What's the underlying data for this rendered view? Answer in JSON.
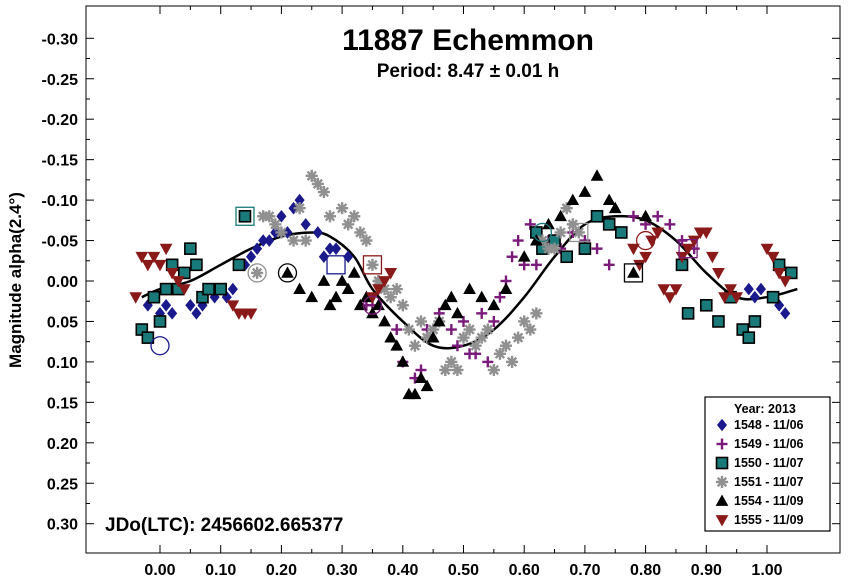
{
  "chart_data": {
    "type": "scatter",
    "title": "11887 Echemmon",
    "subtitle": "Period: 8.47 ± 0.01 h",
    "xlabel": "",
    "ylabel": "Magnitude alpha(2.4°)",
    "annotation": "JDo(LTC): 2456602.665377",
    "xlim": [
      -0.05,
      1.05
    ],
    "ylim": [
      0.35,
      -0.35
    ],
    "y_inverted": true,
    "x_ticks": [
      "0.00",
      "0.10",
      "0.20",
      "0.30",
      "0.40",
      "0.50",
      "0.60",
      "0.70",
      "0.80",
      "0.90",
      "1.00"
    ],
    "y_ticks": [
      "-0.30",
      "-0.25",
      "-0.20",
      "-0.15",
      "-0.10",
      "-0.05",
      "0.00",
      "0.05",
      "0.10",
      "0.15",
      "0.20",
      "0.25",
      "0.30"
    ],
    "legend": {
      "title": "Year: 2013",
      "placement": "bottom-right"
    },
    "series": [
      {
        "name": "1548 - 11/06",
        "marker": "diamond",
        "color": "#1a1a8c",
        "points": [
          [
            -0.02,
            0.03
          ],
          [
            0.0,
            0.04
          ],
          [
            0.01,
            0.03
          ],
          [
            0.02,
            0.04
          ],
          [
            0.05,
            0.03
          ],
          [
            0.06,
            0.04
          ],
          [
            0.07,
            0.03
          ],
          [
            0.09,
            0.02
          ],
          [
            0.1,
            0.01
          ],
          [
            0.11,
            0.02
          ],
          [
            0.12,
            0.01
          ],
          [
            0.14,
            -0.02
          ],
          [
            0.15,
            -0.03
          ],
          [
            0.16,
            -0.04
          ],
          [
            0.17,
            -0.05
          ],
          [
            0.18,
            -0.05
          ],
          [
            0.19,
            -0.06
          ],
          [
            0.2,
            -0.08
          ],
          [
            0.21,
            -0.06
          ],
          [
            0.22,
            -0.09
          ],
          [
            0.23,
            -0.1
          ],
          [
            0.24,
            -0.07
          ],
          [
            0.26,
            -0.06
          ],
          [
            0.27,
            -0.03
          ],
          [
            0.28,
            -0.04
          ],
          [
            0.29,
            -0.04
          ],
          [
            0.31,
            -0.03
          ],
          [
            0.97,
            0.01
          ],
          [
            0.98,
            0.02
          ],
          [
            0.99,
            0.01
          ],
          [
            1.02,
            0.03
          ],
          [
            1.03,
            0.04
          ]
        ]
      },
      {
        "name": "1549 - 11/06",
        "marker": "plus",
        "color": "#7a1a7a",
        "points": [
          [
            0.34,
            0.03
          ],
          [
            0.35,
            0.03
          ],
          [
            0.36,
            0.0
          ],
          [
            0.39,
            0.06
          ],
          [
            0.4,
            0.1
          ],
          [
            0.42,
            0.12
          ],
          [
            0.43,
            0.11
          ],
          [
            0.44,
            0.06
          ],
          [
            0.46,
            0.04
          ],
          [
            0.48,
            0.06
          ],
          [
            0.49,
            0.08
          ],
          [
            0.5,
            0.05
          ],
          [
            0.51,
            0.09
          ],
          [
            0.52,
            0.09
          ],
          [
            0.53,
            0.04
          ],
          [
            0.54,
            0.1
          ],
          [
            0.55,
            0.05
          ],
          [
            0.56,
            0.02
          ],
          [
            0.57,
            0.0
          ],
          [
            0.58,
            -0.03
          ],
          [
            0.59,
            -0.05
          ],
          [
            0.6,
            -0.02
          ],
          [
            0.61,
            -0.07
          ],
          [
            0.62,
            -0.02
          ],
          [
            0.64,
            -0.05
          ],
          [
            0.66,
            -0.04
          ],
          [
            0.68,
            -0.06
          ],
          [
            0.7,
            -0.05
          ],
          [
            0.72,
            -0.04
          ],
          [
            0.74,
            -0.02
          ],
          [
            0.76,
            -0.06
          ],
          [
            0.78,
            -0.08
          ],
          [
            0.8,
            -0.07
          ],
          [
            0.82,
            -0.08
          ],
          [
            0.84,
            -0.07
          ],
          [
            0.86,
            -0.05
          ],
          [
            0.88,
            -0.04
          ]
        ]
      },
      {
        "name": "1550 - 11/07",
        "marker": "square",
        "color": "#1a7a7a",
        "points": [
          [
            -0.03,
            0.06
          ],
          [
            -0.02,
            0.07
          ],
          [
            -0.01,
            0.02
          ],
          [
            0.0,
            0.05
          ],
          [
            0.01,
            0.01
          ],
          [
            0.02,
            -0.02
          ],
          [
            0.03,
            0.01
          ],
          [
            0.04,
            -0.01
          ],
          [
            0.05,
            -0.04
          ],
          [
            0.06,
            -0.02
          ],
          [
            0.07,
            0.02
          ],
          [
            0.08,
            0.01
          ],
          [
            0.1,
            0.01
          ],
          [
            0.13,
            -0.02
          ],
          [
            0.14,
            -0.08
          ],
          [
            0.62,
            -0.06
          ],
          [
            0.63,
            -0.04
          ],
          [
            0.65,
            -0.05
          ],
          [
            0.67,
            -0.03
          ],
          [
            0.7,
            -0.04
          ],
          [
            0.72,
            -0.08
          ],
          [
            0.74,
            -0.07
          ],
          [
            0.76,
            -0.06
          ],
          [
            0.86,
            -0.02
          ],
          [
            0.87,
            0.04
          ],
          [
            0.9,
            0.03
          ],
          [
            0.92,
            0.05
          ],
          [
            0.94,
            0.02
          ],
          [
            0.96,
            0.06
          ],
          [
            0.97,
            0.07
          ],
          [
            0.98,
            0.05
          ],
          [
            1.01,
            0.02
          ],
          [
            1.02,
            -0.02
          ],
          [
            1.04,
            -0.01
          ]
        ]
      },
      {
        "name": "1551 - 11/07",
        "marker": "asterisk",
        "color": "#909090",
        "points": [
          [
            0.16,
            -0.01
          ],
          [
            0.17,
            -0.08
          ],
          [
            0.18,
            -0.08
          ],
          [
            0.19,
            -0.07
          ],
          [
            0.2,
            -0.06
          ],
          [
            0.22,
            -0.05
          ],
          [
            0.23,
            -0.09
          ],
          [
            0.24,
            -0.05
          ],
          [
            0.25,
            -0.13
          ],
          [
            0.26,
            -0.12
          ],
          [
            0.27,
            -0.11
          ],
          [
            0.28,
            -0.08
          ],
          [
            0.3,
            -0.09
          ],
          [
            0.31,
            -0.07
          ],
          [
            0.32,
            -0.08
          ],
          [
            0.33,
            -0.06
          ],
          [
            0.34,
            -0.05
          ],
          [
            0.35,
            -0.02
          ],
          [
            0.36,
            0.0
          ],
          [
            0.37,
            0.01
          ],
          [
            0.38,
            0.02
          ],
          [
            0.39,
            0.01
          ],
          [
            0.4,
            0.03
          ],
          [
            0.41,
            0.06
          ],
          [
            0.42,
            0.08
          ],
          [
            0.43,
            0.05
          ],
          [
            0.44,
            0.07
          ],
          [
            0.45,
            0.06
          ],
          [
            0.46,
            0.05
          ],
          [
            0.47,
            0.11
          ],
          [
            0.48,
            0.1
          ],
          [
            0.49,
            0.11
          ],
          [
            0.5,
            0.07
          ],
          [
            0.51,
            0.06
          ],
          [
            0.52,
            0.08
          ],
          [
            0.53,
            0.07
          ],
          [
            0.54,
            0.06
          ],
          [
            0.55,
            0.11
          ],
          [
            0.56,
            0.09
          ],
          [
            0.57,
            0.08
          ],
          [
            0.58,
            0.1
          ],
          [
            0.59,
            0.07
          ],
          [
            0.6,
            0.05
          ],
          [
            0.61,
            0.06
          ],
          [
            0.62,
            0.04
          ],
          [
            0.63,
            -0.05
          ],
          [
            0.64,
            -0.04
          ],
          [
            0.65,
            -0.04
          ],
          [
            0.66,
            -0.06
          ],
          [
            0.67,
            -0.09
          ],
          [
            0.68,
            -0.07
          ],
          [
            0.69,
            -0.06
          ]
        ]
      },
      {
        "name": "1554 - 11/09",
        "marker": "triangle",
        "color": "#000000",
        "points": [
          [
            0.21,
            -0.01
          ],
          [
            0.23,
            0.01
          ],
          [
            0.25,
            0.02
          ],
          [
            0.27,
            0.0
          ],
          [
            0.28,
            0.03
          ],
          [
            0.29,
            0.02
          ],
          [
            0.3,
            0.0
          ],
          [
            0.31,
            0.01
          ],
          [
            0.32,
            -0.01
          ],
          [
            0.33,
            0.03
          ],
          [
            0.34,
            0.02
          ],
          [
            0.35,
            0.04
          ],
          [
            0.36,
            0.03
          ],
          [
            0.37,
            0.05
          ],
          [
            0.38,
            0.07
          ],
          [
            0.39,
            0.08
          ],
          [
            0.4,
            0.1
          ],
          [
            0.41,
            0.14
          ],
          [
            0.42,
            0.14
          ],
          [
            0.43,
            0.12
          ],
          [
            0.44,
            0.13
          ],
          [
            0.45,
            0.07
          ],
          [
            0.46,
            0.05
          ],
          [
            0.47,
            0.03
          ],
          [
            0.48,
            0.02
          ],
          [
            0.49,
            0.04
          ],
          [
            0.51,
            0.01
          ],
          [
            0.53,
            0.02
          ],
          [
            0.55,
            0.03
          ],
          [
            0.57,
            0.01
          ],
          [
            0.6,
            -0.03
          ],
          [
            0.62,
            -0.05
          ],
          [
            0.64,
            -0.07
          ],
          [
            0.66,
            -0.08
          ],
          [
            0.68,
            -0.1
          ],
          [
            0.7,
            -0.11
          ],
          [
            0.72,
            -0.13
          ],
          [
            0.74,
            -0.1
          ],
          [
            0.75,
            -0.09
          ],
          [
            0.78,
            -0.01
          ],
          [
            0.8,
            -0.08
          ]
        ]
      },
      {
        "name": "1555 - 11/09",
        "marker": "triangle-down",
        "color": "#8a1a1a",
        "points": [
          [
            -0.04,
            0.02
          ],
          [
            -0.03,
            -0.03
          ],
          [
            -0.02,
            -0.02
          ],
          [
            -0.01,
            -0.03
          ],
          [
            0.0,
            -0.02
          ],
          [
            0.01,
            -0.04
          ],
          [
            0.02,
            -0.01
          ],
          [
            0.03,
            0.0
          ],
          [
            0.04,
            0.01
          ],
          [
            0.12,
            0.03
          ],
          [
            0.13,
            0.04
          ],
          [
            0.14,
            0.04
          ],
          [
            0.15,
            0.04
          ],
          [
            0.35,
            0.02
          ],
          [
            0.36,
            0.01
          ],
          [
            0.37,
            0.0
          ],
          [
            0.38,
            -0.01
          ],
          [
            0.78,
            -0.04
          ],
          [
            0.79,
            -0.02
          ],
          [
            0.8,
            -0.03
          ],
          [
            0.81,
            -0.05
          ],
          [
            0.82,
            -0.06
          ],
          [
            0.83,
            0.01
          ],
          [
            0.84,
            0.02
          ],
          [
            0.85,
            0.01
          ],
          [
            0.86,
            -0.03
          ],
          [
            0.87,
            -0.04
          ],
          [
            0.88,
            -0.05
          ],
          [
            0.89,
            -0.06
          ],
          [
            0.9,
            -0.06
          ],
          [
            0.91,
            -0.03
          ],
          [
            0.92,
            -0.01
          ],
          [
            0.93,
            0.02
          ],
          [
            0.94,
            0.01
          ],
          [
            0.95,
            0.02
          ],
          [
            1.0,
            -0.04
          ],
          [
            1.01,
            -0.03
          ],
          [
            1.02,
            -0.01
          ],
          [
            1.03,
            0.0
          ]
        ]
      }
    ],
    "fit_curve": {
      "name": "Fourier fit",
      "period_phase": 1.0,
      "samples": [
        [
          -0.03,
          0.02
        ],
        [
          0.0,
          0.01
        ],
        [
          0.05,
          0.0
        ],
        [
          0.1,
          -0.02
        ],
        [
          0.15,
          -0.04
        ],
        [
          0.2,
          -0.055
        ],
        [
          0.25,
          -0.06
        ],
        [
          0.28,
          -0.055
        ],
        [
          0.32,
          -0.03
        ],
        [
          0.35,
          0.01
        ],
        [
          0.4,
          0.05
        ],
        [
          0.45,
          0.08
        ],
        [
          0.5,
          0.08
        ],
        [
          0.55,
          0.06
        ],
        [
          0.6,
          0.02
        ],
        [
          0.65,
          -0.03
        ],
        [
          0.7,
          -0.07
        ],
        [
          0.75,
          -0.08
        ],
        [
          0.8,
          -0.075
        ],
        [
          0.85,
          -0.05
        ],
        [
          0.9,
          -0.01
        ],
        [
          0.95,
          0.02
        ],
        [
          1.0,
          0.02
        ],
        [
          1.05,
          0.01
        ]
      ]
    }
  }
}
